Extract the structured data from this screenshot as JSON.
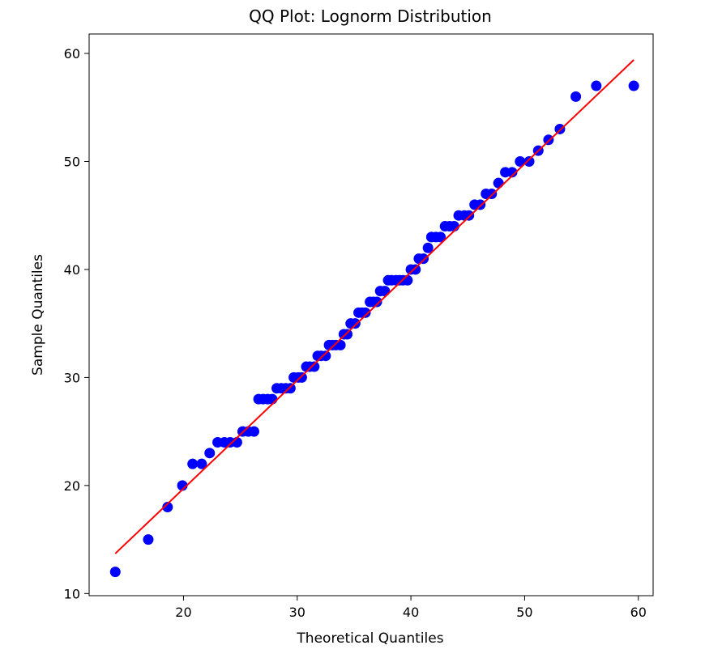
{
  "chart_data": {
    "type": "scatter",
    "title": "QQ Plot: Lognorm Distribution",
    "xlabel": "Theoretical Quantiles",
    "ylabel": "Sample Quantiles",
    "xlim": [
      11.7,
      61.3
    ],
    "ylim": [
      9.8,
      61.8
    ],
    "xticks": [
      20,
      30,
      40,
      50,
      60
    ],
    "yticks": [
      10,
      20,
      30,
      40,
      50,
      60
    ],
    "grid": false,
    "series": [
      {
        "kind": "points",
        "color": "#0000ff",
        "points": [
          [
            14.0,
            12
          ],
          [
            16.9,
            15
          ],
          [
            18.6,
            18
          ],
          [
            19.9,
            20
          ],
          [
            20.8,
            22
          ],
          [
            21.6,
            22
          ],
          [
            22.3,
            23
          ],
          [
            23.0,
            24
          ],
          [
            23.6,
            24
          ],
          [
            24.1,
            24
          ],
          [
            24.7,
            24
          ],
          [
            25.2,
            25
          ],
          [
            25.7,
            25
          ],
          [
            26.2,
            25
          ],
          [
            26.6,
            28
          ],
          [
            27.0,
            28
          ],
          [
            27.4,
            28
          ],
          [
            27.8,
            28
          ],
          [
            28.2,
            29
          ],
          [
            28.6,
            29
          ],
          [
            29.0,
            29
          ],
          [
            29.4,
            29
          ],
          [
            29.7,
            30
          ],
          [
            30.1,
            30
          ],
          [
            30.4,
            30
          ],
          [
            30.8,
            31
          ],
          [
            31.1,
            31
          ],
          [
            31.5,
            31
          ],
          [
            31.8,
            32
          ],
          [
            32.1,
            32
          ],
          [
            32.5,
            32
          ],
          [
            32.8,
            33
          ],
          [
            33.1,
            33
          ],
          [
            33.4,
            33
          ],
          [
            33.8,
            33
          ],
          [
            34.1,
            34
          ],
          [
            34.4,
            34
          ],
          [
            34.7,
            35
          ],
          [
            35.1,
            35
          ],
          [
            35.4,
            36
          ],
          [
            35.7,
            36
          ],
          [
            36.0,
            36
          ],
          [
            36.4,
            37
          ],
          [
            36.7,
            37
          ],
          [
            37.0,
            37
          ],
          [
            37.3,
            38
          ],
          [
            37.7,
            38
          ],
          [
            38.0,
            39
          ],
          [
            38.3,
            39
          ],
          [
            38.7,
            39
          ],
          [
            39.0,
            39
          ],
          [
            39.3,
            39
          ],
          [
            39.7,
            39
          ],
          [
            40.0,
            40
          ],
          [
            40.4,
            40
          ],
          [
            40.7,
            41
          ],
          [
            41.1,
            41
          ],
          [
            41.5,
            42
          ],
          [
            41.8,
            43
          ],
          [
            42.2,
            43
          ],
          [
            42.6,
            43
          ],
          [
            43.0,
            44
          ],
          [
            43.4,
            44
          ],
          [
            43.8,
            44
          ],
          [
            44.2,
            45
          ],
          [
            44.7,
            45
          ],
          [
            45.1,
            45
          ],
          [
            45.6,
            46
          ],
          [
            46.1,
            46
          ],
          [
            46.6,
            47
          ],
          [
            47.1,
            47
          ],
          [
            47.7,
            48
          ],
          [
            48.3,
            49
          ],
          [
            48.9,
            49
          ],
          [
            49.6,
            50
          ],
          [
            50.4,
            50
          ],
          [
            51.2,
            51
          ],
          [
            52.1,
            52
          ],
          [
            53.1,
            53
          ],
          [
            54.5,
            56
          ],
          [
            56.3,
            57
          ],
          [
            59.6,
            57
          ]
        ]
      },
      {
        "kind": "line",
        "color": "#ff0000",
        "points": [
          [
            14.0,
            13.7
          ],
          [
            59.6,
            59.4
          ]
        ]
      }
    ]
  }
}
